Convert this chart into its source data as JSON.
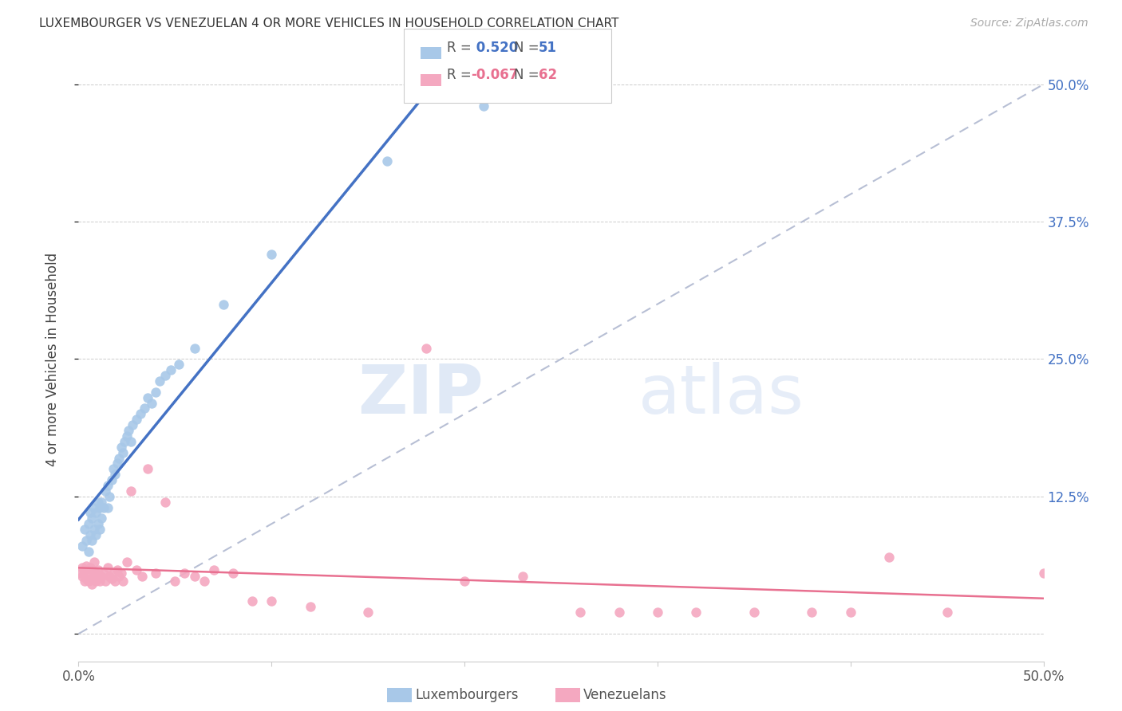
{
  "title": "LUXEMBOURGER VS VENEZUELAN 4 OR MORE VEHICLES IN HOUSEHOLD CORRELATION CHART",
  "source": "Source: ZipAtlas.com",
  "ylabel": "4 or more Vehicles in Household",
  "xlim": [
    0.0,
    0.5
  ],
  "ylim": [
    -0.025,
    0.525
  ],
  "yticks": [
    0.0,
    0.125,
    0.25,
    0.375,
    0.5
  ],
  "ytick_labels_right": [
    "",
    "12.5%",
    "25.0%",
    "37.5%",
    "50.0%"
  ],
  "xticks": [
    0.0,
    0.1,
    0.2,
    0.3,
    0.4,
    0.5
  ],
  "lux_R": 0.52,
  "lux_N": 51,
  "ven_R": -0.067,
  "ven_N": 62,
  "lux_color": "#A8C8E8",
  "ven_color": "#F4A8C0",
  "lux_line_color": "#4472C4",
  "ven_line_color": "#E87090",
  "diag_color": "#B0B8D0",
  "background_color": "#FFFFFF",
  "watermark_zip": "ZIP",
  "watermark_atlas": "atlas",
  "lux_scatter_x": [
    0.002,
    0.003,
    0.004,
    0.005,
    0.005,
    0.006,
    0.006,
    0.007,
    0.007,
    0.008,
    0.008,
    0.009,
    0.009,
    0.01,
    0.01,
    0.011,
    0.011,
    0.012,
    0.012,
    0.013,
    0.014,
    0.015,
    0.015,
    0.016,
    0.017,
    0.018,
    0.019,
    0.02,
    0.021,
    0.022,
    0.023,
    0.024,
    0.025,
    0.026,
    0.027,
    0.028,
    0.03,
    0.032,
    0.034,
    0.036,
    0.038,
    0.04,
    0.042,
    0.045,
    0.048,
    0.052,
    0.06,
    0.075,
    0.1,
    0.16,
    0.21
  ],
  "lux_scatter_y": [
    0.08,
    0.095,
    0.085,
    0.075,
    0.1,
    0.09,
    0.11,
    0.085,
    0.105,
    0.095,
    0.115,
    0.09,
    0.11,
    0.1,
    0.12,
    0.095,
    0.115,
    0.105,
    0.12,
    0.115,
    0.13,
    0.115,
    0.135,
    0.125,
    0.14,
    0.15,
    0.145,
    0.155,
    0.16,
    0.17,
    0.165,
    0.175,
    0.18,
    0.185,
    0.175,
    0.19,
    0.195,
    0.2,
    0.205,
    0.215,
    0.21,
    0.22,
    0.23,
    0.235,
    0.24,
    0.245,
    0.26,
    0.3,
    0.345,
    0.43,
    0.48
  ],
  "ven_scatter_x": [
    0.001,
    0.002,
    0.002,
    0.003,
    0.003,
    0.004,
    0.004,
    0.005,
    0.005,
    0.006,
    0.006,
    0.007,
    0.007,
    0.008,
    0.008,
    0.009,
    0.009,
    0.01,
    0.01,
    0.011,
    0.012,
    0.013,
    0.014,
    0.015,
    0.016,
    0.017,
    0.018,
    0.019,
    0.02,
    0.021,
    0.022,
    0.023,
    0.025,
    0.027,
    0.03,
    0.033,
    0.036,
    0.04,
    0.045,
    0.05,
    0.055,
    0.06,
    0.065,
    0.07,
    0.08,
    0.09,
    0.1,
    0.12,
    0.15,
    0.18,
    0.2,
    0.23,
    0.26,
    0.3,
    0.35,
    0.4,
    0.45,
    0.5,
    0.28,
    0.32,
    0.38,
    0.42
  ],
  "ven_scatter_y": [
    0.055,
    0.052,
    0.06,
    0.048,
    0.058,
    0.05,
    0.062,
    0.048,
    0.055,
    0.05,
    0.06,
    0.045,
    0.058,
    0.052,
    0.065,
    0.048,
    0.055,
    0.05,
    0.058,
    0.048,
    0.052,
    0.055,
    0.048,
    0.06,
    0.052,
    0.05,
    0.055,
    0.048,
    0.058,
    0.052,
    0.055,
    0.048,
    0.065,
    0.13,
    0.058,
    0.052,
    0.15,
    0.055,
    0.12,
    0.048,
    0.055,
    0.052,
    0.048,
    0.058,
    0.055,
    0.03,
    0.03,
    0.025,
    0.02,
    0.26,
    0.048,
    0.052,
    0.02,
    0.02,
    0.02,
    0.02,
    0.02,
    0.055,
    0.02,
    0.02,
    0.02,
    0.07
  ]
}
